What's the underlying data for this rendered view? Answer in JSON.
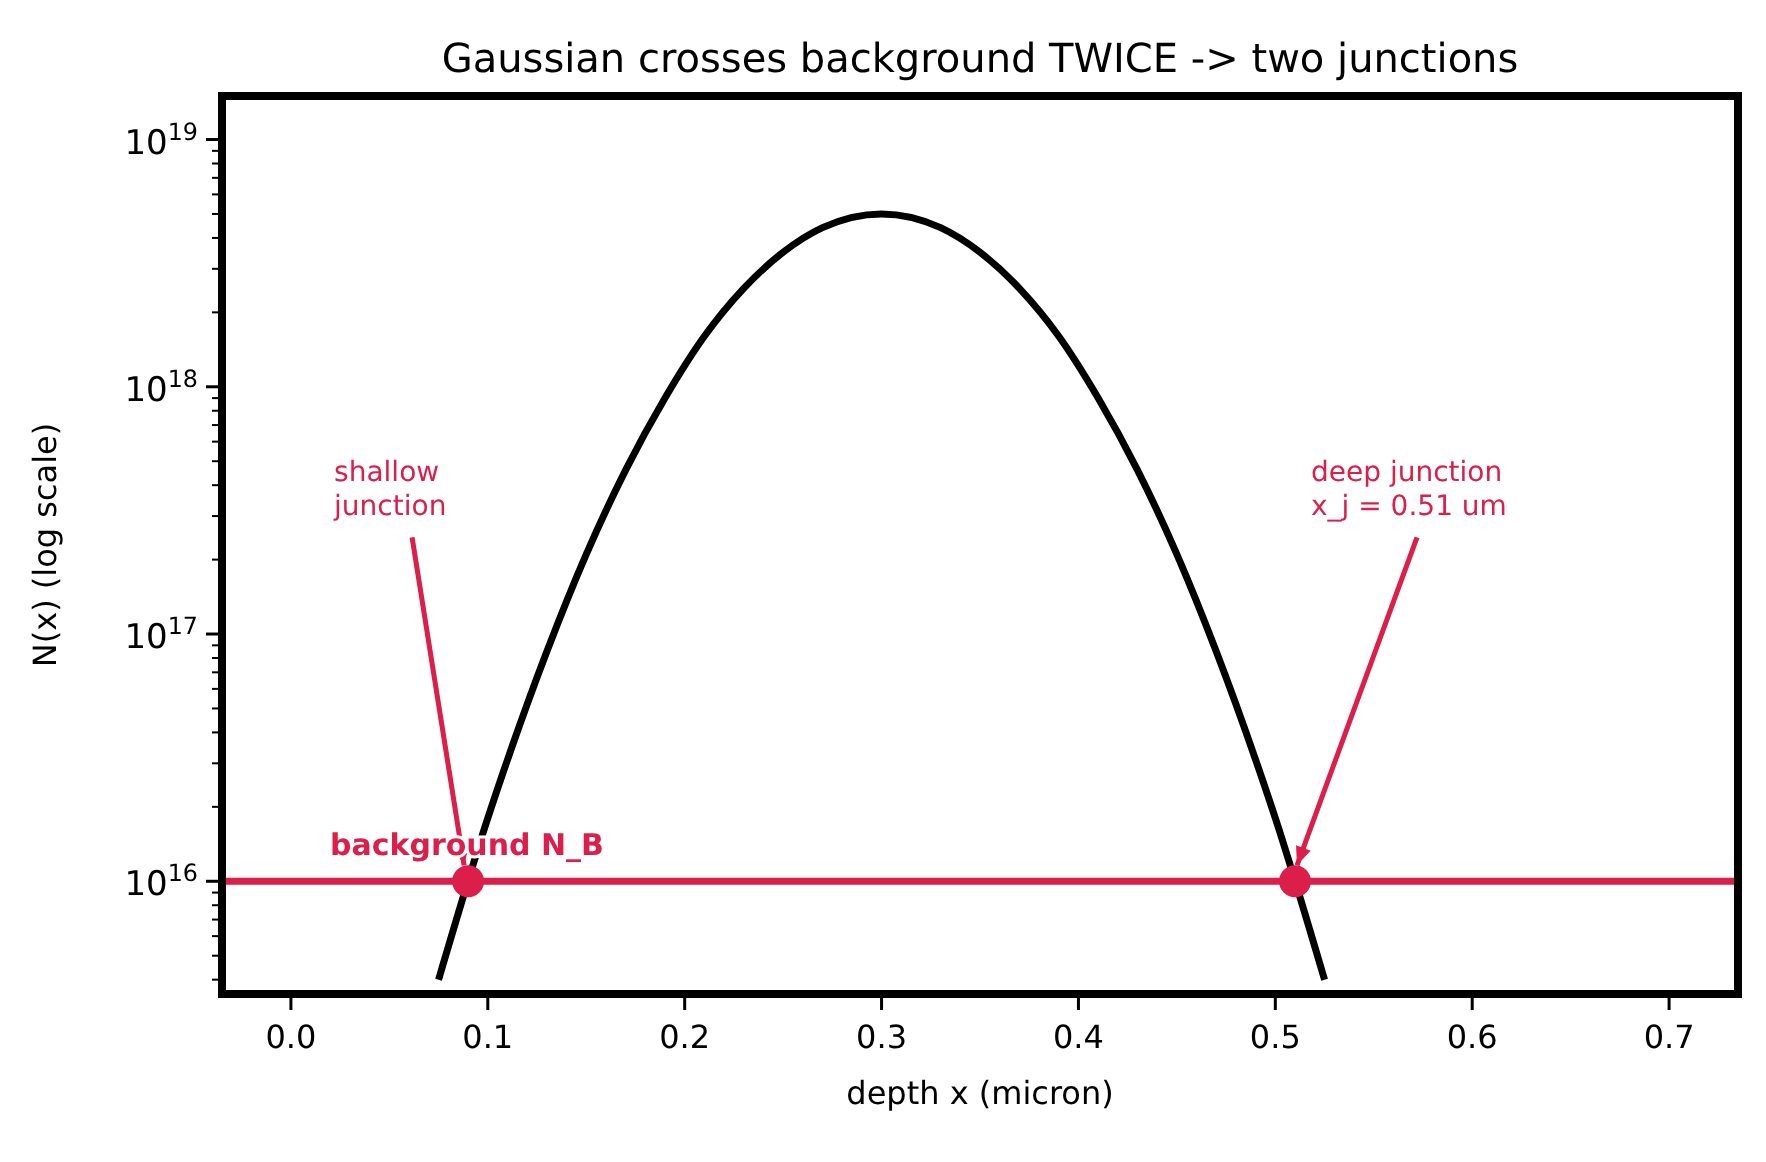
{
  "chart_data": {
    "type": "line",
    "title": "Gaussian crosses background TWICE -> two junctions",
    "xlabel": "depth x (micron)",
    "ylabel": "N(x)  (log scale)",
    "log": "y",
    "xlim": [
      -0.035,
      0.735
    ],
    "ylim": [
      3500000000000000.0,
      1.5e+19
    ],
    "xticks": [
      {
        "value": 0,
        "label": "0.0"
      },
      {
        "value": 0.1,
        "label": "0.1"
      },
      {
        "value": 0.2,
        "label": "0.2"
      },
      {
        "value": 0.3,
        "label": "0.3"
      },
      {
        "value": 0.4,
        "label": "0.4"
      },
      {
        "value": 0.5,
        "label": "0.5"
      },
      {
        "value": 0.6,
        "label": "0.6"
      },
      {
        "value": 0.7,
        "label": "0.7"
      }
    ],
    "yticks": [
      {
        "value": 4000000000000000.0,
        "label": null
      },
      {
        "value": 5000000000000000.0,
        "label": null
      },
      {
        "value": 6000000000000000.0,
        "label": null
      },
      {
        "value": 7000000000000000.0,
        "label": null
      },
      {
        "value": 8000000000000000.0,
        "label": null
      },
      {
        "value": 9000000000000000.0,
        "label": null
      },
      {
        "value": 1e+16,
        "label": "10$^{16}$"
      },
      {
        "value": 2e+16,
        "label": null
      },
      {
        "value": 3e+16,
        "label": null
      },
      {
        "value": 4e+16,
        "label": null
      },
      {
        "value": 5e+16,
        "label": null
      },
      {
        "value": 6e+16,
        "label": null
      },
      {
        "value": 7e+16,
        "label": null
      },
      {
        "value": 8e+16,
        "label": null
      },
      {
        "value": 9e+16,
        "label": null
      },
      {
        "value": 1e+17,
        "label": "10$^{17}$"
      },
      {
        "value": 2e+17,
        "label": null
      },
      {
        "value": 3e+17,
        "label": null
      },
      {
        "value": 4e+17,
        "label": null
      },
      {
        "value": 5e+17,
        "label": null
      },
      {
        "value": 6e+17,
        "label": null
      },
      {
        "value": 7e+17,
        "label": null
      },
      {
        "value": 8e+17,
        "label": null
      },
      {
        "value": 9e+17,
        "label": null
      },
      {
        "value": 1e+18,
        "label": "10$^{18}$"
      },
      {
        "value": 2e+18,
        "label": null
      },
      {
        "value": 3e+18,
        "label": null
      },
      {
        "value": 4e+18,
        "label": null
      },
      {
        "value": 5e+18,
        "label": null
      },
      {
        "value": 6e+18,
        "label": null
      },
      {
        "value": 7e+18,
        "label": null
      },
      {
        "value": 8e+18,
        "label": null
      },
      {
        "value": 9e+18,
        "label": null
      },
      {
        "value": 1e+19,
        "label": "10$^{19}$"
      }
    ],
    "grid": false,
    "series": [
      {
        "color": "#000000",
        "x": [
          0.075,
          0.1,
          0.11,
          0.13,
          0.15,
          0.17,
          0.19,
          0.21,
          0.23,
          0.25,
          0.27,
          0.3,
          0.33,
          0.35,
          0.37,
          0.39,
          0.41,
          0.43,
          0.45,
          0.47,
          0.49,
          0.5,
          0.525
        ],
        "values": [
          4000000000000000.0,
          1.8e+16,
          3.1e+16,
          8.5e+16,
          2.1e+17,
          4.6e+17,
          9e+17,
          1.6e+18,
          2.5e+18,
          3.5e+18,
          4.4e+18,
          5e+18,
          4.4e+18,
          3.5e+18,
          2.5e+18,
          1.6e+18,
          9e+17,
          4.6e+17,
          2.1e+17,
          8.5e+16,
          3.1e+16,
          1.8e+16,
          4000000000000000.0
        ]
      },
      {
        "type": "scatter",
        "color": "#dc1e4a",
        "marker": "circle",
        "x": [
          0.09,
          0.51
        ],
        "values": [
          1e+16,
          1e+16
        ]
      }
    ],
    "ref_lines": [
      {
        "axis": "y",
        "value": 1e+16,
        "label": "background N_B",
        "color": "#dc1e4a"
      }
    ],
    "annotations": [
      {
        "text": "shallow\njunction",
        "x": 0.09,
        "y": 1e+16
      },
      {
        "text": "deep junction\nx_j = 0.51 um",
        "x": 0.51,
        "y": 1e+16
      }
    ]
  }
}
